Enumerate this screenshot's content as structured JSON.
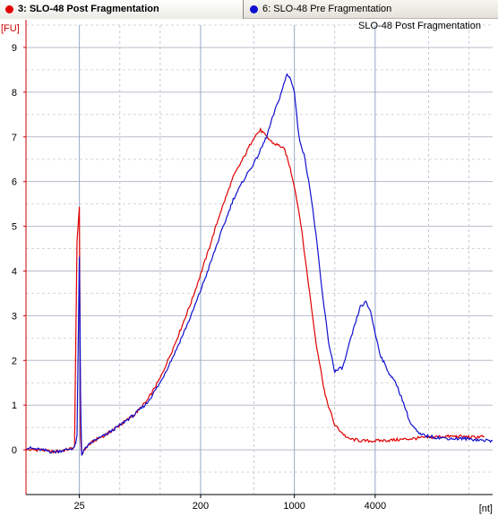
{
  "tabs": [
    {
      "label": "3: SLO-48 Post Fragmentation",
      "color": "#e00000"
    },
    {
      "label": "6: SLO-48 Pre Fragmentation",
      "color": "#1010d0"
    }
  ],
  "chart_data": {
    "type": "line",
    "title": "SLO-48 Post Fragmentation",
    "ylabel": "[FU]",
    "xlabel": "[nt]",
    "ylim": [
      -1,
      9.5
    ],
    "yticks": [
      0,
      1,
      2,
      3,
      4,
      5,
      6,
      7,
      8,
      9
    ],
    "xticks": [
      "25",
      "200",
      "1000",
      "4000"
    ],
    "x_scale": "log",
    "xlim": [
      10,
      30000
    ],
    "grid": true,
    "series": [
      {
        "name": "3: SLO-48 Post Fragmentation",
        "color": "#e00000",
        "x": [
          10,
          13,
          16,
          20,
          23,
          24,
          25,
          25.5,
          26,
          28,
          32,
          40,
          50,
          65,
          80,
          100,
          130,
          170,
          220,
          280,
          350,
          430,
          500,
          560,
          620,
          700,
          780,
          850,
          930,
          1000,
          1100,
          1250,
          1450,
          1700,
          2000,
          2500,
          3200,
          4000,
          5500,
          7500,
          10000,
          13000,
          17000,
          21000,
          26000
        ],
        "y": [
          0.0,
          0.0,
          -0.05,
          0.0,
          0.05,
          4.7,
          5.4,
          0.3,
          -0.1,
          0.05,
          0.2,
          0.35,
          0.55,
          0.8,
          1.1,
          1.6,
          2.4,
          3.3,
          4.3,
          5.3,
          6.1,
          6.6,
          7.0,
          7.15,
          7.0,
          6.85,
          6.8,
          6.7,
          6.3,
          5.9,
          5.2,
          3.9,
          2.4,
          1.2,
          0.55,
          0.25,
          0.2,
          0.2,
          0.22,
          0.25,
          0.28,
          0.3,
          0.3,
          0.28,
          0.3
        ]
      },
      {
        "name": "6: SLO-48 Pre Fragmentation",
        "color": "#1010d0",
        "x": [
          10,
          13,
          16,
          20,
          23,
          24,
          25,
          25.5,
          26,
          28,
          32,
          40,
          50,
          65,
          80,
          100,
          130,
          170,
          220,
          280,
          350,
          430,
          520,
          620,
          700,
          760,
          820,
          880,
          940,
          1000,
          1080,
          1180,
          1300,
          1450,
          1600,
          1800,
          2000,
          2300,
          2700,
          3100,
          3400,
          3700,
          4000,
          4400,
          5000,
          5800,
          6500,
          7300,
          8500,
          10000,
          12000,
          15000,
          19000,
          24000,
          30000
        ],
        "y": [
          0.05,
          0.0,
          -0.05,
          0.0,
          0.05,
          0.3,
          4.3,
          1.3,
          -0.1,
          0.05,
          0.2,
          0.35,
          0.55,
          0.8,
          1.05,
          1.5,
          2.2,
          3.0,
          3.9,
          4.8,
          5.6,
          6.1,
          6.5,
          7.0,
          7.5,
          7.8,
          8.1,
          8.4,
          8.3,
          8.0,
          7.0,
          6.6,
          5.9,
          4.8,
          3.6,
          2.4,
          1.75,
          1.85,
          2.6,
          3.2,
          3.3,
          3.1,
          2.6,
          2.1,
          1.75,
          1.45,
          1.05,
          0.6,
          0.35,
          0.3,
          0.27,
          0.25,
          0.25,
          0.22,
          0.2
        ]
      }
    ]
  }
}
